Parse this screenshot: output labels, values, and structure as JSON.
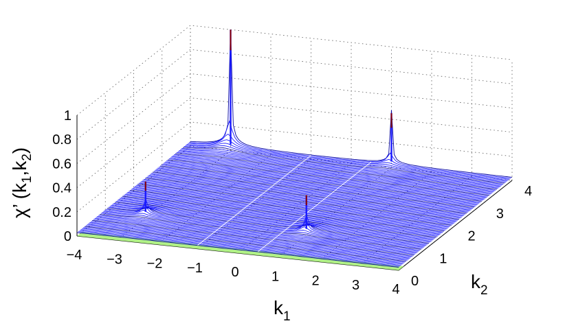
{
  "chart_data": {
    "type": "surface",
    "title": "",
    "x_axis": {
      "label_main": "k",
      "label_sub": "1",
      "range": [
        -4,
        4
      ],
      "ticks": [
        "−4",
        "−3",
        "−2",
        "−1",
        "0",
        "1",
        "2",
        "3",
        "4"
      ]
    },
    "y_axis": {
      "label_main": "k",
      "label_sub": "2",
      "range": [
        0,
        4
      ],
      "ticks": [
        "0",
        "1",
        "2",
        "3",
        "4"
      ]
    },
    "z_axis": {
      "label_prefix": "χ’ (k",
      "label_sub1": "1",
      "label_mid": ",k",
      "label_sub2": "2",
      "label_suffix": ")",
      "range": [
        0,
        1
      ],
      "ticks": [
        "0",
        "0.2",
        "0.4",
        "0.6",
        "0.8",
        "1"
      ]
    },
    "grid": true,
    "peaks": [
      {
        "k1": -3.0,
        "k2": 1.0,
        "chi": 0.3
      },
      {
        "k1": 1.0,
        "k2": 1.0,
        "chi": 0.33
      },
      {
        "k1": -3.0,
        "k2": 4.0,
        "chi": 1.0
      },
      {
        "k1": 1.0,
        "k2": 4.0,
        "chi": 0.45
      }
    ],
    "colors": {
      "surface": "#1a1aff",
      "surface_dark": "#0000a0",
      "floor": "#a8f07a",
      "peak_top": "#8b0000",
      "grid": "#555555"
    }
  }
}
